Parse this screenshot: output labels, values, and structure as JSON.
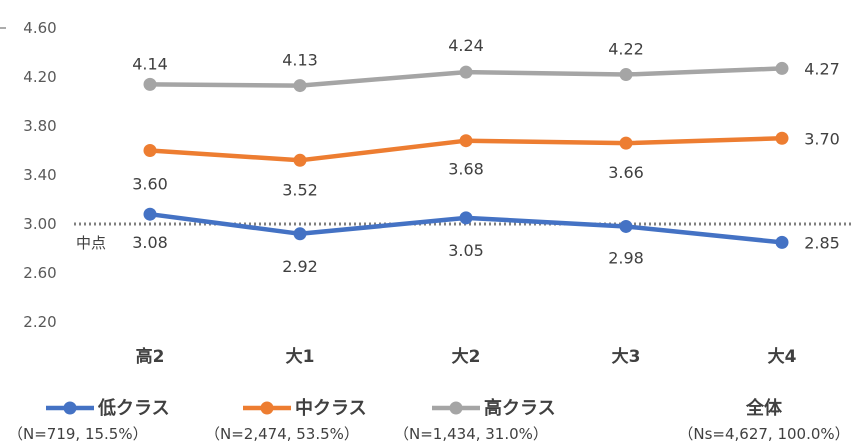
{
  "chart_data": {
    "type": "line",
    "categories": [
      "高2",
      "大1",
      "大2",
      "大3",
      "大4"
    ],
    "ylim": [
      2.2,
      4.6
    ],
    "yticks": [
      "4.60",
      "4.20",
      "3.80",
      "3.40",
      "3.00",
      "2.60",
      "2.20"
    ],
    "grid": false,
    "legend_position": "bottom",
    "reference_line": {
      "value": 3.0,
      "label": "中点",
      "style": "dotted"
    },
    "series": [
      {
        "name": "低クラス",
        "subtitle": "（N=719, 15.5%）",
        "color": "#4472C4",
        "values": [
          3.08,
          2.92,
          3.05,
          2.98,
          2.85
        ],
        "labels": [
          "3.08",
          "2.92",
          "3.05",
          "2.98",
          "2.85"
        ]
      },
      {
        "name": "中クラス",
        "subtitle": "（N=2,474, 53.5%）",
        "color": "#ED7D31",
        "values": [
          3.6,
          3.52,
          3.68,
          3.66,
          3.7
        ],
        "labels": [
          "3.60",
          "3.52",
          "3.68",
          "3.66",
          "3.70"
        ]
      },
      {
        "name": "高クラス",
        "subtitle": "（N=1,434, 31.0%）",
        "color": "#A5A5A5",
        "values": [
          4.14,
          4.13,
          4.24,
          4.22,
          4.27
        ],
        "labels": [
          "4.14",
          "4.13",
          "4.24",
          "4.22",
          "4.27"
        ]
      }
    ],
    "total": {
      "label": "全体",
      "subtitle": "（Ns=4,627, 100.0%）"
    }
  }
}
